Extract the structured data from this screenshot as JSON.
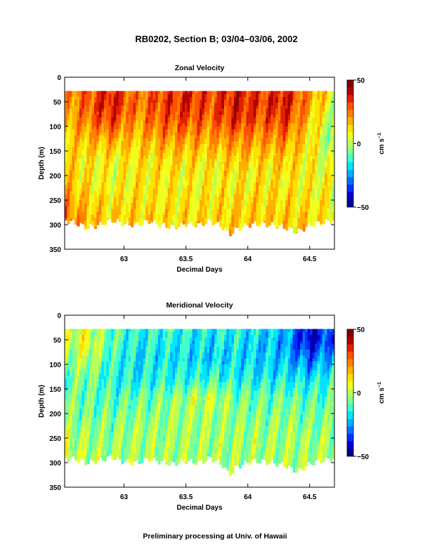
{
  "title": "RB0202, Section B; 03/04–03/06, 2002",
  "footer": "Preliminary processing at Univ. of Hawaii",
  "colormap": [
    "#00008f",
    "#0000cf",
    "#0030ff",
    "#0070ff",
    "#00b0ff",
    "#00e6ff",
    "#40ffd0",
    "#80ff90",
    "#b8ff58",
    "#f0ff20",
    "#ffe000",
    "#ffb000",
    "#ff8000",
    "#ff5000",
    "#e02000",
    "#b00000",
    "#800000"
  ],
  "chart_data": [
    {
      "type": "heatmap",
      "title": "Zonal Velocity",
      "xlabel": "Decimal Days",
      "ylabel": "Depth (m)",
      "xlim": [
        62.52,
        64.7
      ],
      "ylim": [
        350,
        0
      ],
      "xticks": [
        63,
        63.5,
        64,
        64.5
      ],
      "xtick_labels": [
        "63",
        "63.5",
        "64",
        "64.5"
      ],
      "yticks": [
        0,
        50,
        100,
        150,
        200,
        250,
        300,
        350
      ],
      "ytick_labels": [
        "0",
        "50",
        "100",
        "150",
        "200",
        "250",
        "300",
        "350"
      ],
      "colorbar": {
        "label": "cm s",
        "label_sup": "−1",
        "range": [
          -50,
          50
        ],
        "ticks": [
          50,
          0,
          -50
        ],
        "tick_labels": [
          "50",
          "0",
          "−50"
        ]
      },
      "data_top_depth": 28,
      "bottom_depth_profile": [
        [
          62.52,
          290
        ],
        [
          62.6,
          295
        ],
        [
          62.7,
          305
        ],
        [
          62.8,
          300
        ],
        [
          62.9,
          290
        ],
        [
          63.0,
          298
        ],
        [
          63.1,
          300
        ],
        [
          63.2,
          292
        ],
        [
          63.3,
          300
        ],
        [
          63.4,
          305
        ],
        [
          63.5,
          298
        ],
        [
          63.6,
          300
        ],
        [
          63.7,
          292
        ],
        [
          63.8,
          305
        ],
        [
          63.85,
          320
        ],
        [
          63.9,
          310
        ],
        [
          64.0,
          300
        ],
        [
          64.1,
          298
        ],
        [
          64.2,
          300
        ],
        [
          64.3,
          305
        ],
        [
          64.4,
          315
        ],
        [
          64.5,
          300
        ],
        [
          64.6,
          295
        ],
        [
          64.7,
          290
        ]
      ],
      "field_anchors": {
        "x": [
          62.52,
          62.7,
          62.9,
          63.1,
          63.3,
          63.5,
          63.7,
          63.9,
          64.1,
          64.3,
          64.5,
          64.7
        ],
        "depth": [
          28,
          50,
          90,
          130,
          170,
          210,
          250,
          290,
          330
        ],
        "values": [
          [
            22,
            26,
            36,
            22,
            30,
            34,
            30,
            36,
            30,
            36,
            22,
            6
          ],
          [
            20,
            28,
            38,
            24,
            32,
            36,
            30,
            38,
            32,
            38,
            20,
            4
          ],
          [
            16,
            24,
            32,
            20,
            28,
            30,
            26,
            34,
            28,
            32,
            14,
            -2
          ],
          [
            14,
            16,
            18,
            14,
            20,
            20,
            18,
            22,
            20,
            22,
            10,
            -6
          ],
          [
            12,
            10,
            8,
            10,
            12,
            12,
            10,
            14,
            12,
            14,
            8,
            2
          ],
          [
            16,
            10,
            6,
            10,
            10,
            8,
            8,
            10,
            10,
            10,
            8,
            6
          ],
          [
            22,
            14,
            10,
            12,
            10,
            10,
            10,
            12,
            12,
            12,
            10,
            8
          ],
          [
            26,
            18,
            12,
            14,
            12,
            12,
            12,
            14,
            14,
            14,
            12,
            10
          ],
          [
            26,
            18,
            12,
            14,
            12,
            12,
            12,
            14,
            14,
            14,
            12,
            10
          ]
        ]
      }
    },
    {
      "type": "heatmap",
      "title": "Meridional Velocity",
      "xlabel": "Decimal Days",
      "ylabel": "Depth (m)",
      "xlim": [
        62.52,
        64.7
      ],
      "ylim": [
        350,
        0
      ],
      "xticks": [
        63,
        63.5,
        64,
        64.5
      ],
      "xtick_labels": [
        "63",
        "63.5",
        "64",
        "64.5"
      ],
      "yticks": [
        0,
        50,
        100,
        150,
        200,
        250,
        300,
        350
      ],
      "ytick_labels": [
        "0",
        "50",
        "100",
        "150",
        "200",
        "250",
        "300",
        "350"
      ],
      "colorbar": {
        "label": "cm s",
        "label_sup": "−1",
        "range": [
          -50,
          50
        ],
        "ticks": [
          50,
          0,
          -50
        ],
        "tick_labels": [
          "50",
          "0",
          "−50"
        ]
      },
      "data_top_depth": 28,
      "bottom_depth_profile": [
        [
          62.52,
          290
        ],
        [
          62.6,
          292
        ],
        [
          62.7,
          300
        ],
        [
          62.8,
          295
        ],
        [
          62.9,
          288
        ],
        [
          63.0,
          298
        ],
        [
          63.1,
          300
        ],
        [
          63.2,
          292
        ],
        [
          63.3,
          298
        ],
        [
          63.4,
          302
        ],
        [
          63.5,
          296
        ],
        [
          63.6,
          300
        ],
        [
          63.7,
          290
        ],
        [
          63.8,
          305
        ],
        [
          63.85,
          325
        ],
        [
          63.9,
          310
        ],
        [
          64.0,
          298
        ],
        [
          64.1,
          296
        ],
        [
          64.2,
          300
        ],
        [
          64.3,
          305
        ],
        [
          64.4,
          318
        ],
        [
          64.5,
          302
        ],
        [
          64.6,
          295
        ],
        [
          64.7,
          290
        ]
      ],
      "field_anchors": {
        "x": [
          62.52,
          62.7,
          62.9,
          63.1,
          63.3,
          63.5,
          63.7,
          63.9,
          64.1,
          64.3,
          64.5,
          64.7
        ],
        "depth": [
          28,
          50,
          90,
          130,
          170,
          210,
          250,
          290,
          330
        ],
        "values": [
          [
            2,
            4,
            -10,
            -14,
            -12,
            -14,
            -16,
            -14,
            -18,
            -20,
            -42,
            -28
          ],
          [
            0,
            6,
            -8,
            -16,
            -14,
            -16,
            -18,
            -16,
            -20,
            -24,
            -44,
            -30
          ],
          [
            -4,
            2,
            -12,
            -18,
            -16,
            -18,
            -20,
            -18,
            -20,
            -22,
            -30,
            -20
          ],
          [
            -8,
            -6,
            -14,
            -16,
            -14,
            -14,
            -12,
            -14,
            -16,
            -16,
            -18,
            -12
          ],
          [
            -6,
            -8,
            -10,
            -8,
            -6,
            -2,
            2,
            -6,
            -8,
            -8,
            -10,
            -8
          ],
          [
            -4,
            -6,
            -6,
            -4,
            -4,
            -2,
            -2,
            -4,
            -6,
            -4,
            -6,
            -6
          ],
          [
            0,
            -2,
            -4,
            -2,
            -2,
            -2,
            -2,
            -2,
            -2,
            -2,
            -4,
            -2
          ],
          [
            2,
            0,
            -2,
            -2,
            -2,
            -2,
            -2,
            -2,
            -2,
            -2,
            -2,
            0
          ],
          [
            2,
            0,
            -2,
            -2,
            -2,
            -2,
            -2,
            -2,
            -2,
            -2,
            -2,
            0
          ]
        ]
      }
    }
  ]
}
